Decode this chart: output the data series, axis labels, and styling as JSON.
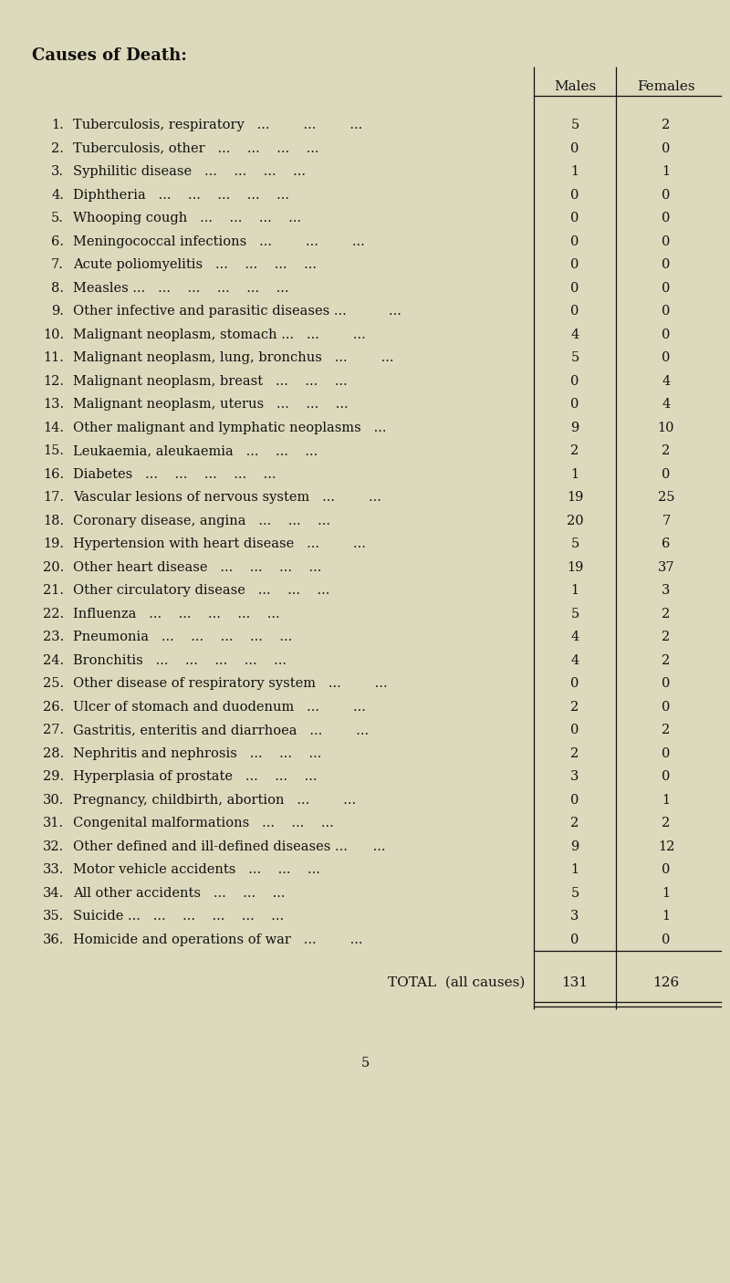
{
  "title": "Causes of Death:",
  "rows": [
    {
      "num": "1.",
      "label": "Tuberculosis, respiratory",
      "dots": "...        ...        ...",
      "males": 5,
      "females": 2
    },
    {
      "num": "2.",
      "label": "Tuberculosis, other",
      "dots": "...    ...    ...    ...",
      "males": 0,
      "females": 0
    },
    {
      "num": "3.",
      "label": "Syphilitic disease",
      "dots": "...    ...    ...    ...",
      "males": 1,
      "females": 1
    },
    {
      "num": "4.",
      "label": "Diphtheria",
      "dots": "...    ...    ...    ...    ...",
      "males": 0,
      "females": 0
    },
    {
      "num": "5.",
      "label": "Whooping cough",
      "dots": "...    ...    ...    ...",
      "males": 0,
      "females": 0
    },
    {
      "num": "6.",
      "label": "Meningococcal infections",
      "dots": "...        ...        ...",
      "males": 0,
      "females": 0
    },
    {
      "num": "7.",
      "label": "Acute poliomyelitis",
      "dots": "...    ...    ...    ...",
      "males": 0,
      "females": 0
    },
    {
      "num": "8.",
      "label": "Measles ...",
      "dots": "...    ...    ...    ...    ...",
      "males": 0,
      "females": 0
    },
    {
      "num": "9.",
      "label": "Other infective and parasitic diseases ...",
      "dots": "       ...",
      "males": 0,
      "females": 0
    },
    {
      "num": "10.",
      "label": "Malignant neoplasm, stomach ...",
      "dots": "...        ...",
      "males": 4,
      "females": 0
    },
    {
      "num": "11.",
      "label": "Malignant neoplasm, lung, bronchus",
      "dots": "...        ...",
      "males": 5,
      "females": 0
    },
    {
      "num": "12.",
      "label": "Malignant neoplasm, breast",
      "dots": "...    ...    ...",
      "males": 0,
      "females": 4
    },
    {
      "num": "13.",
      "label": "Malignant neoplasm, uterus",
      "dots": "...    ...    ...",
      "males": 0,
      "females": 4
    },
    {
      "num": "14.",
      "label": "Other malignant and lymphatic neoplasms",
      "dots": "...",
      "males": 9,
      "females": 10
    },
    {
      "num": "15.",
      "label": "Leukaemia, aleukaemia",
      "dots": "...    ...    ...",
      "males": 2,
      "females": 2
    },
    {
      "num": "16.",
      "label": "Diabetes",
      "dots": "...    ...    ...    ...    ...",
      "males": 1,
      "females": 0
    },
    {
      "num": "17.",
      "label": "Vascular lesions of nervous system",
      "dots": "...        ...",
      "males": 19,
      "females": 25
    },
    {
      "num": "18.",
      "label": "Coronary disease, angina",
      "dots": "...    ...    ...",
      "males": 20,
      "females": 7
    },
    {
      "num": "19.",
      "label": "Hypertension with heart disease",
      "dots": "...        ...",
      "males": 5,
      "females": 6
    },
    {
      "num": "20.",
      "label": "Other heart disease",
      "dots": "...    ...    ...    ...",
      "males": 19,
      "females": 37
    },
    {
      "num": "21.",
      "label": "Other circulatory disease",
      "dots": "...    ...    ...",
      "males": 1,
      "females": 3
    },
    {
      "num": "22.",
      "label": "Influenza",
      "dots": "...    ...    ...    ...    ...",
      "males": 5,
      "females": 2
    },
    {
      "num": "23.",
      "label": "Pneumonia",
      "dots": "...    ...    ...    ...    ...",
      "males": 4,
      "females": 2
    },
    {
      "num": "24.",
      "label": "Bronchitis",
      "dots": "...    ...    ...    ...    ...",
      "males": 4,
      "females": 2
    },
    {
      "num": "25.",
      "label": "Other disease of respiratory system",
      "dots": "...        ...",
      "males": 0,
      "females": 0
    },
    {
      "num": "26.",
      "label": "Ulcer of stomach and duodenum",
      "dots": "...        ...",
      "males": 2,
      "females": 0
    },
    {
      "num": "27.",
      "label": "Gastritis, enteritis and diarrhoea",
      "dots": "...        ...",
      "males": 0,
      "females": 2
    },
    {
      "num": "28.",
      "label": "Nephritis and nephrosis",
      "dots": "...    ...    ...",
      "males": 2,
      "females": 0
    },
    {
      "num": "29.",
      "label": "Hyperplasia of prostate",
      "dots": "...    ...    ...",
      "males": 3,
      "females": 0
    },
    {
      "num": "30.",
      "label": "Pregnancy, childbirth, abortion",
      "dots": "...        ...",
      "males": 0,
      "females": 1
    },
    {
      "num": "31.",
      "label": "Congenital malformations",
      "dots": "...    ...    ...",
      "males": 2,
      "females": 2
    },
    {
      "num": "32.",
      "label": "Other defined and ill-defined diseases ...",
      "dots": "   ...",
      "males": 9,
      "females": 12
    },
    {
      "num": "33.",
      "label": "Motor vehicle accidents",
      "dots": "...    ...    ...",
      "males": 1,
      "females": 0
    },
    {
      "num": "34.",
      "label": "All other accidents",
      "dots": "...    ...    ...",
      "males": 5,
      "females": 1
    },
    {
      "num": "35.",
      "label": "Suicide ...",
      "dots": "...    ...    ...    ...    ...",
      "males": 3,
      "females": 1
    },
    {
      "num": "36.",
      "label": "Homicide and operations of war",
      "dots": "...        ...",
      "males": 0,
      "females": 0
    }
  ],
  "total_males": 131,
  "total_females": 126,
  "bg_color": "#ddd9bc",
  "text_color": "#111111",
  "page_number": "5"
}
